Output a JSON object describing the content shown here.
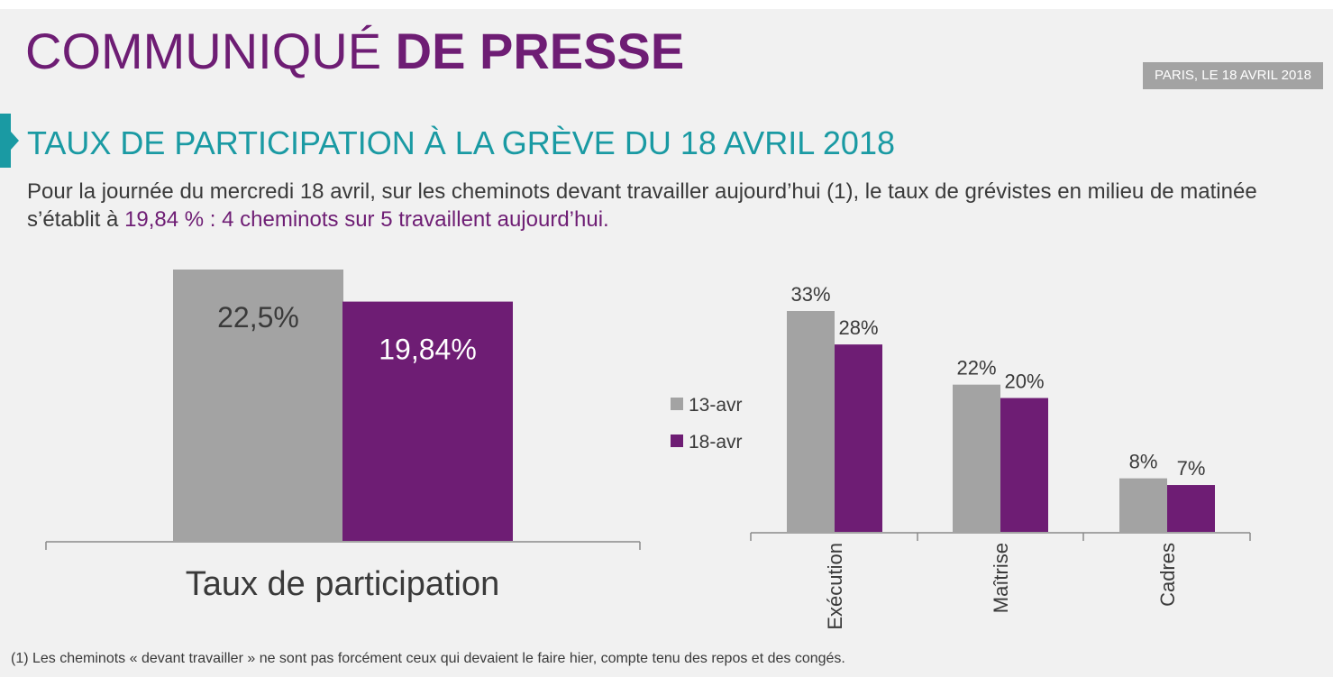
{
  "header": {
    "title_light": "COMMUNIQUÉ",
    "title_bold": "DE PRESSE",
    "date": "PARIS, LE 18 AVRIL 2018"
  },
  "section": {
    "title": "TAUX DE PARTICIPATION À LA GRÈVE DU 18 AVRIL 2018",
    "intro_part1": "Pour la journée du mercredi 18 avril, sur les cheminots devant travailler aujourd’hui (1), le taux de grévistes en milieu de matinée s’établit à ",
    "intro_highlight": "19,84 % : 4 cheminots sur 5 travaillent aujourd’hui."
  },
  "footnote": "(1)  Les cheminots « devant travailler » ne sont pas forcément ceux qui devaient le faire hier, compte tenu des repos et des congés.",
  "colors": {
    "gray": "#a3a3a3",
    "purple": "#6e1d74",
    "teal": "#1a9aa3",
    "text": "#3a3a3a"
  },
  "chart_data": [
    {
      "type": "bar",
      "categories": [
        "Taux de participation"
      ],
      "series": [
        {
          "values": [
            22.5
          ],
          "labels": [
            "22,5%"
          ],
          "color": "#a3a3a3"
        },
        {
          "values": [
            19.84
          ],
          "labels": [
            "19,84%"
          ],
          "color": "#6e1d74"
        }
      ],
      "ylim": [
        0,
        22.5
      ],
      "data_labels": "inside-top",
      "legend": "none",
      "grid": false
    },
    {
      "type": "bar",
      "categories": [
        "Exécution",
        "Maîtrise",
        "Cadres"
      ],
      "series": [
        {
          "name": "13-avr",
          "values": [
            33,
            22,
            8
          ],
          "labels": [
            "33%",
            "22%",
            "8%"
          ],
          "color": "#a3a3a3"
        },
        {
          "name": "18-avr",
          "values": [
            28,
            20,
            7
          ],
          "labels": [
            "28%",
            "20%",
            "7%"
          ],
          "color": "#6e1d74"
        }
      ],
      "ylim": [
        0,
        33
      ],
      "data_labels": "above",
      "legend": "left",
      "category_labels": "rotated",
      "grid": false
    }
  ]
}
